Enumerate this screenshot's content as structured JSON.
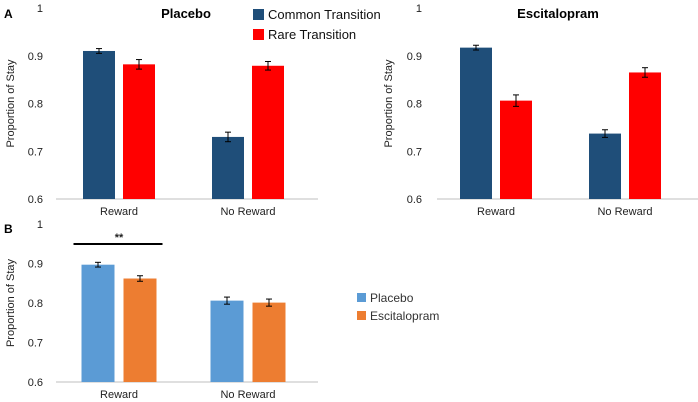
{
  "panels": {
    "a": "A",
    "b": "B"
  },
  "legend_top": [
    {
      "label": "Common Transition",
      "color": "#1f4e79"
    },
    {
      "label": "Rare Transition",
      "color": "#ff0000"
    }
  ],
  "legend_bottom": [
    {
      "label": "Placebo",
      "color": "#5b9bd5"
    },
    {
      "label": "Escitalopram",
      "color": "#ed7d31"
    }
  ],
  "chart_data": [
    {
      "id": "placebo",
      "type": "bar",
      "title": "Placebo",
      "panel": "A",
      "ylabel": "Proportion of Stay",
      "ylim": [
        0.6,
        1.0
      ],
      "yticks": [
        "0.6",
        "0.7",
        "0.8",
        "0.9",
        "1"
      ],
      "categories": [
        "Reward",
        "No Reward"
      ],
      "series": [
        {
          "name": "Common Transition",
          "color": "#1f4e79",
          "values": [
            0.91,
            0.73
          ],
          "errors": [
            0.005,
            0.01
          ]
        },
        {
          "name": "Rare Transition",
          "color": "#ff0000",
          "values": [
            0.882,
            0.879
          ],
          "errors": [
            0.01,
            0.009
          ]
        }
      ]
    },
    {
      "id": "escitalopram",
      "type": "bar",
      "title": "Escitalopram",
      "panel": "A",
      "ylabel": "Proportion of Stay",
      "ylim": [
        0.6,
        1.0
      ],
      "yticks": [
        "0.6",
        "0.7",
        "0.8",
        "0.9",
        "1"
      ],
      "categories": [
        "Reward",
        "No Reward"
      ],
      "series": [
        {
          "name": "Common Transition",
          "color": "#1f4e79",
          "values": [
            0.917,
            0.737
          ],
          "errors": [
            0.005,
            0.008
          ]
        },
        {
          "name": "Rare Transition",
          "color": "#ff0000",
          "values": [
            0.806,
            0.865
          ],
          "errors": [
            0.012,
            0.01
          ]
        }
      ]
    },
    {
      "id": "combined",
      "type": "bar",
      "title": "",
      "panel": "B",
      "ylabel": "Proportion of Stay",
      "ylim": [
        0.6,
        1.0
      ],
      "yticks": [
        "0.6",
        "0.7",
        "0.8",
        "0.9",
        "1"
      ],
      "categories": [
        "Reward",
        "No Reward"
      ],
      "series": [
        {
          "name": "Placebo",
          "color": "#5b9bd5",
          "values": [
            0.897,
            0.806
          ],
          "errors": [
            0.006,
            0.009
          ]
        },
        {
          "name": "Escitalopram",
          "color": "#ed7d31",
          "values": [
            0.862,
            0.801
          ],
          "errors": [
            0.007,
            0.009
          ]
        }
      ],
      "annotation": {
        "text": "**",
        "category": "Reward"
      }
    }
  ]
}
